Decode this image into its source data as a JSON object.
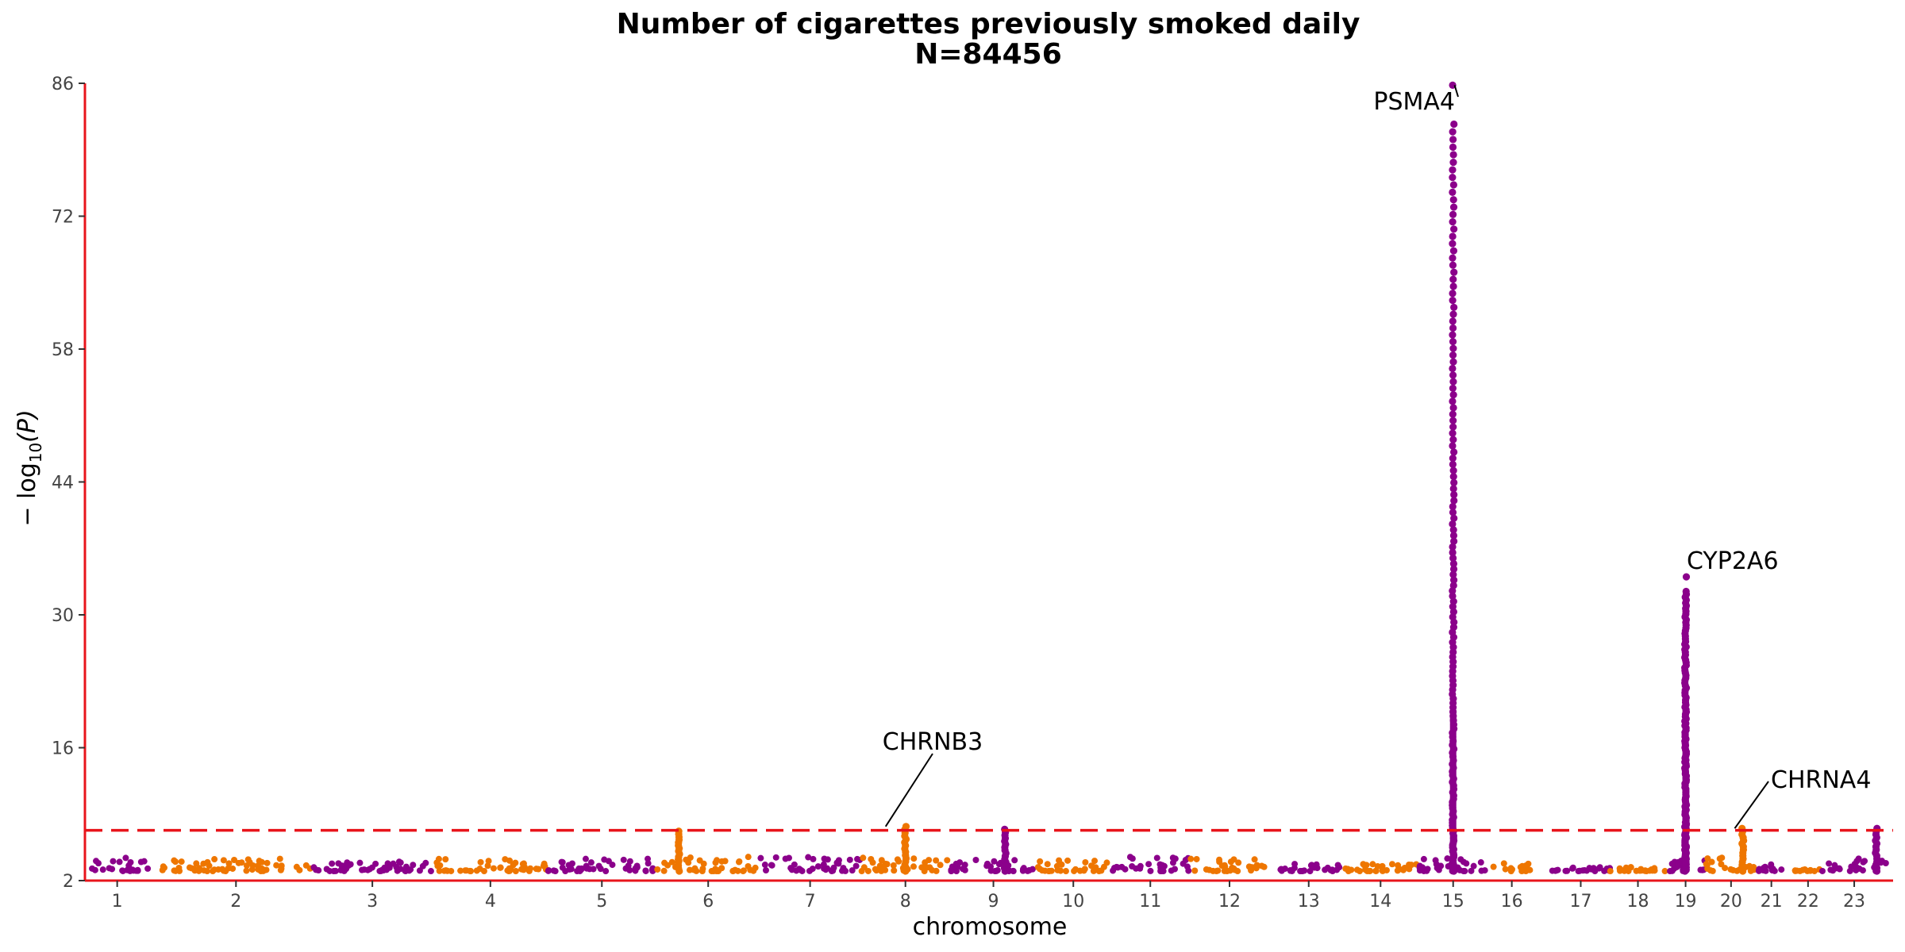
{
  "chart_data": {
    "type": "scatter",
    "subtype": "manhattan",
    "title": "Number of cigarettes previously smoked daily",
    "subtitle": "N=84456",
    "xlabel": "chromosome",
    "ylabel": "− log10(P)",
    "ylabel_main": "− log",
    "ylabel_sub": "10",
    "ylabel_tail": "(P)",
    "ylim": [
      2,
      86
    ],
    "yticks": [
      2,
      16,
      30,
      44,
      58,
      72,
      86
    ],
    "significance_threshold": 7.3,
    "colors": {
      "odd": "#8B008B",
      "even": "#EE7600",
      "threshold": "#E8141B",
      "axis": "#E8141B"
    },
    "chromosomes": [
      {
        "label": "1",
        "start": 0.0,
        "end": 0.044,
        "peak": 4.4
      },
      {
        "label": "2",
        "start": 0.052,
        "end": 0.154,
        "peak": 4.3
      },
      {
        "label": "3",
        "start": 0.154,
        "end": 0.238,
        "peak": 4.0
      },
      {
        "label": "4",
        "start": 0.238,
        "end": 0.315,
        "peak": 4.3
      },
      {
        "label": "5",
        "start": 0.315,
        "end": 0.39,
        "peak": 4.4
      },
      {
        "label": "6",
        "start": 0.39,
        "end": 0.46,
        "peak": 7.2
      },
      {
        "label": "7",
        "start": 0.46,
        "end": 0.529,
        "peak": 4.5
      },
      {
        "label": "8",
        "start": 0.529,
        "end": 0.59,
        "peak": 7.7
      },
      {
        "label": "9",
        "start": 0.59,
        "end": 0.649,
        "peak": 7.4
      },
      {
        "label": "10",
        "start": 0.649,
        "end": 0.699,
        "peak": 4.3
      },
      {
        "label": "11",
        "start": 0.699,
        "end": 0.754,
        "peak": 4.5
      },
      {
        "label": "12",
        "start": 0.754,
        "end": 0.807,
        "peak": 5.3
      },
      {
        "label": "13",
        "start": 0.812,
        "end": 0.857,
        "peak": 3.8
      },
      {
        "label": "14",
        "start": 0.857,
        "end": 0.91,
        "peak": 3.8
      },
      {
        "label": "15",
        "start": 0.91,
        "end": 0.956,
        "peak": 85.8
      },
      {
        "label": "16",
        "start": 0.956,
        "end": 0.99,
        "peak": 4.0
      },
      {
        "label": "17",
        "start": 1.0,
        "end": 1.04,
        "peak": 3.5
      },
      {
        "label": "18",
        "start": 1.04,
        "end": 1.078,
        "peak": 3.5
      },
      {
        "label": "19",
        "start": 1.078,
        "end": 1.105,
        "peak": 34.0
      },
      {
        "label": "20",
        "start": 1.105,
        "end": 1.14,
        "peak": 7.5
      },
      {
        "label": "21",
        "start": 1.14,
        "end": 1.16,
        "peak": 3.9
      },
      {
        "label": "22",
        "start": 1.166,
        "end": 1.184,
        "peak": 3.2
      },
      {
        "label": "23",
        "start": 1.184,
        "end": 1.229,
        "peak": 7.5
      }
    ],
    "annotations": [
      {
        "label": "PSMA4",
        "chromosome": "15",
        "x": 0.934,
        "y": 85.8
      },
      {
        "label": "CYP2A6",
        "chromosome": "19",
        "x": 1.093,
        "y": 34.0
      },
      {
        "label": "CHRNB3",
        "chromosome": "8",
        "x": 0.546,
        "y": 7.7
      },
      {
        "label": "CHRNA4",
        "chromosome": "20",
        "x": 1.125,
        "y": 7.5
      }
    ]
  }
}
